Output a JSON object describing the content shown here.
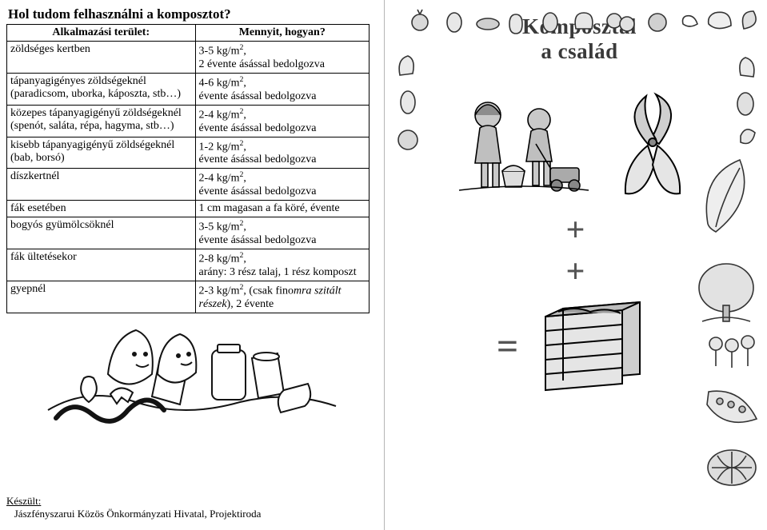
{
  "left": {
    "title": "Hol tudom felhasználni a komposztot?",
    "headers": {
      "col1": "Alkalmazási terület:",
      "col2": "Mennyit, hogyan?"
    },
    "rows": [
      {
        "area": "zöldséges kertben",
        "amount_html": "3-5 kg/m<sup>2</sup>,\n2 évente ásással bedolgozva"
      },
      {
        "area": "tápanyagigényes zöldségeknél (paradicsom, uborka, káposzta, stb…)",
        "amount_html": "4-6 kg/m<sup>2</sup>,\névente ásással bedolgozva"
      },
      {
        "area": "közepes tápanyagigényű zöldségeknél (spenót, saláta, répa, hagyma, stb…)",
        "amount_html": "2-4 kg/m<sup>2</sup>,\névente ásással bedolgozva"
      },
      {
        "area": "kisebb tápanyagigényű zöldségeknél (bab, borsó)",
        "amount_html": "1-2 kg/m<sup>2</sup>,\névente ásással bedolgozva"
      },
      {
        "area": "díszkertnél",
        "amount_html": "2-4 kg/m<sup>2</sup>,\névente ásással bedolgozva"
      },
      {
        "area": "fák esetében",
        "amount_html": "1 cm magasan a fa köré, évente"
      },
      {
        "area": "bogyós gyümölcsöknél",
        "amount_html": "3-5 kg/m<sup>2</sup>,\névente ásással bedolgozva"
      },
      {
        "area": "fák ültetésekor",
        "amount_html": "2-8 kg/m<sup>2</sup>,\narány: 3 rész talaj, 1 rész komposzt"
      },
      {
        "area": "gyepnél",
        "amount_html": "2-3 kg/m<sup>2</sup>, (csak fino<i>mra szitált részek</i>), 2 évente"
      }
    ],
    "credit_label": "Készült:",
    "credit_text": "Jászfényszarui Közös Önkormányzati Hivatal, Projektiroda"
  },
  "right": {
    "title_line1": "Komposztál",
    "title_line2": "a család",
    "plus": "+",
    "equals": "="
  },
  "colors": {
    "ink": "#000000",
    "cover_title": "#3a3a3a",
    "plus": "#545454",
    "divider": "#b5b5b5"
  }
}
